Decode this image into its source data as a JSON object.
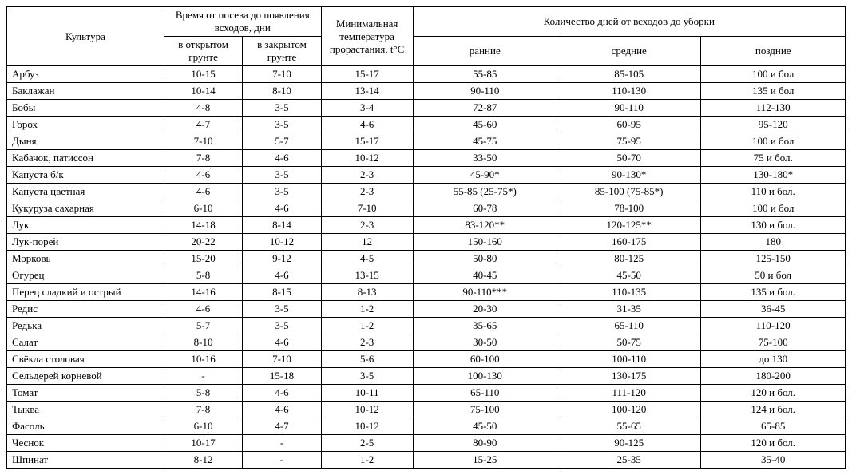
{
  "headers": {
    "crop": "Культура",
    "sowing_group": "Время от посева до появления всходов, дни",
    "open_ground": "в открытом грунте",
    "closed_ground": "в закрытом грунте",
    "min_temp": "Минимальная температура прорастания, t°C",
    "harvest_group": "Количество дней от всходов до уборки",
    "early": "ранние",
    "mid": "средние",
    "late": "поздние"
  },
  "rows": [
    {
      "crop": "Арбуз",
      "open": "10-15",
      "closed": "7-10",
      "temp": "15-17",
      "early": "55-85",
      "mid": "85-105",
      "late": "100 и бол"
    },
    {
      "crop": "Баклажан",
      "open": "10-14",
      "closed": "8-10",
      "temp": "13-14",
      "early": "90-110",
      "mid": "110-130",
      "late": "135 и бол"
    },
    {
      "crop": "Бобы",
      "open": "4-8",
      "closed": "3-5",
      "temp": "3-4",
      "early": "72-87",
      "mid": "90-110",
      "late": "112-130"
    },
    {
      "crop": "Горох",
      "open": "4-7",
      "closed": "3-5",
      "temp": "4-6",
      "early": "45-60",
      "mid": "60-95",
      "late": "95-120"
    },
    {
      "crop": "Дыня",
      "open": "7-10",
      "closed": "5-7",
      "temp": "15-17",
      "early": "45-75",
      "mid": "75-95",
      "late": "100 и бол"
    },
    {
      "crop": "Кабачок, патиссон",
      "open": "7-8",
      "closed": "4-6",
      "temp": "10-12",
      "early": "33-50",
      "mid": "50-70",
      "late": "75 и бол."
    },
    {
      "crop": "Капуста б/к",
      "open": "4-6",
      "closed": "3-5",
      "temp": "2-3",
      "early": "45-90*",
      "mid": "90-130*",
      "late": "130-180*"
    },
    {
      "crop": "Капуста цветная",
      "open": "4-6",
      "closed": "3-5",
      "temp": "2-3",
      "early": "55-85 (25-75*)",
      "mid": "85-100 (75-85*)",
      "late": "110 и бол."
    },
    {
      "crop": "Кукуруза сахарная",
      "open": "6-10",
      "closed": "4-6",
      "temp": "7-10",
      "early": "60-78",
      "mid": "78-100",
      "late": "100 и бол"
    },
    {
      "crop": "Лук",
      "open": "14-18",
      "closed": "8-14",
      "temp": "2-3",
      "early": "83-120**",
      "mid": "120-125**",
      "late": "130 и бол."
    },
    {
      "crop": "Лук-порей",
      "open": "20-22",
      "closed": "10-12",
      "temp": "12",
      "early": "150-160",
      "mid": "160-175",
      "late": "180"
    },
    {
      "crop": "Морковь",
      "open": "15-20",
      "closed": "9-12",
      "temp": "4-5",
      "early": "50-80",
      "mid": "80-125",
      "late": "125-150"
    },
    {
      "crop": "Огурец",
      "open": "5-8",
      "closed": "4-6",
      "temp": "13-15",
      "early": "40-45",
      "mid": "45-50",
      "late": "50 и бол"
    },
    {
      "crop": "Перец сладкий и острый",
      "open": "14-16",
      "closed": "8-15",
      "temp": "8-13",
      "early": "90-110***",
      "mid": "110-135",
      "late": "135 и бол."
    },
    {
      "crop": "Редис",
      "open": "4-6",
      "closed": "3-5",
      "temp": "1-2",
      "early": "20-30",
      "mid": "31-35",
      "late": "36-45"
    },
    {
      "crop": "Редька",
      "open": "5-7",
      "closed": "3-5",
      "temp": "1-2",
      "early": "35-65",
      "mid": "65-110",
      "late": "110-120"
    },
    {
      "crop": "Салат",
      "open": "8-10",
      "closed": "4-6",
      "temp": "2-3",
      "early": "30-50",
      "mid": "50-75",
      "late": "75-100"
    },
    {
      "crop": "Свёкла столовая",
      "open": "10-16",
      "closed": "7-10",
      "temp": "5-6",
      "early": "60-100",
      "mid": "100-110",
      "late": "до 130"
    },
    {
      "crop": "Сельдерей корневой",
      "open": "-",
      "closed": "15-18",
      "temp": "3-5",
      "early": "100-130",
      "mid": "130-175",
      "late": "180-200"
    },
    {
      "crop": "Томат",
      "open": "5-8",
      "closed": "4-6",
      "temp": "10-11",
      "early": "65-110",
      "mid": "111-120",
      "late": "120 и бол."
    },
    {
      "crop": "Тыква",
      "open": "7-8",
      "closed": "4-6",
      "temp": "10-12",
      "early": "75-100",
      "mid": "100-120",
      "late": "124 и бол."
    },
    {
      "crop": "Фасоль",
      "open": "6-10",
      "closed": "4-7",
      "temp": "10-12",
      "early": "45-50",
      "mid": "55-65",
      "late": "65-85"
    },
    {
      "crop": "Чеснок",
      "open": "10-17",
      "closed": "-",
      "temp": "2-5",
      "early": "80-90",
      "mid": "90-125",
      "late": "120 и бол."
    },
    {
      "crop": "Шпинат",
      "open": "8-12",
      "closed": "-",
      "temp": "1-2",
      "early": "15-25",
      "mid": "25-35",
      "late": "35-40"
    }
  ]
}
